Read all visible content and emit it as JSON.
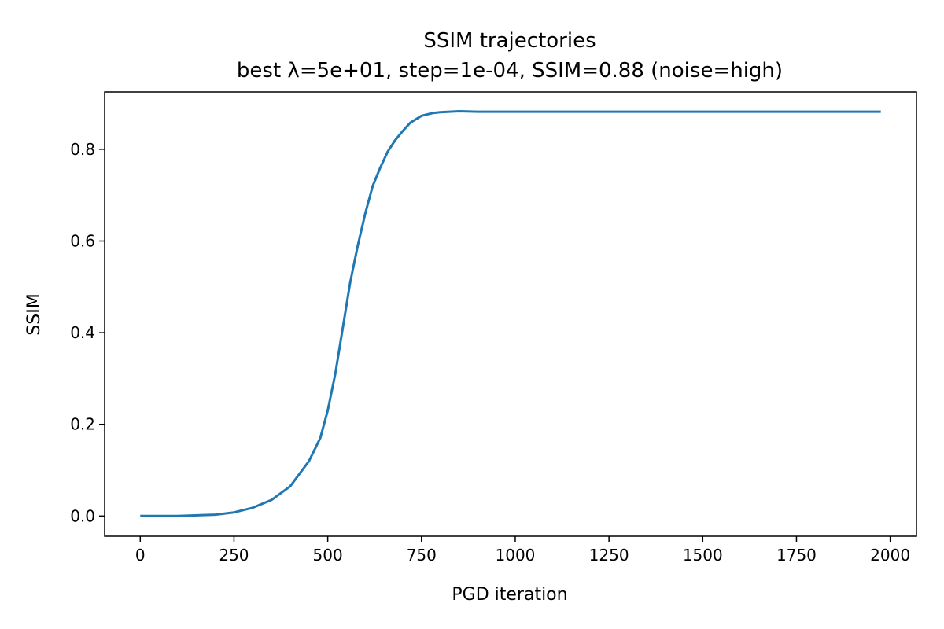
{
  "chart_data": {
    "type": "line",
    "title": "SSIM trajectories",
    "subtitle": "best λ=5e+01, step=1e-04, SSIM=0.88 (noise=high)",
    "xlabel": "PGD iteration",
    "ylabel": "SSIM",
    "xlim": [
      -95,
      2070
    ],
    "ylim": [
      -0.044,
      0.925
    ],
    "x_ticks": [
      0,
      250,
      500,
      750,
      1000,
      1250,
      1500,
      1750,
      2000
    ],
    "x_tick_labels": [
      "0",
      "250",
      "500",
      "750",
      "1000",
      "1250",
      "1500",
      "1750",
      "2000"
    ],
    "y_ticks": [
      0.0,
      0.2,
      0.4,
      0.6,
      0.8
    ],
    "y_tick_labels": [
      "0.0",
      "0.2",
      "0.4",
      "0.6",
      "0.8"
    ],
    "grid": false,
    "line_color": "#1f77b4",
    "series": [
      {
        "x": [
          0,
          100,
          200,
          250,
          300,
          350,
          400,
          450,
          480,
          500,
          520,
          540,
          560,
          580,
          600,
          620,
          640,
          660,
          680,
          700,
          720,
          750,
          780,
          800,
          850,
          900,
          1000,
          1250,
          1500,
          1750,
          1975
        ],
        "y": [
          0.0,
          0.0,
          0.003,
          0.008,
          0.018,
          0.035,
          0.065,
          0.12,
          0.17,
          0.23,
          0.31,
          0.41,
          0.51,
          0.59,
          0.66,
          0.72,
          0.76,
          0.795,
          0.82,
          0.84,
          0.858,
          0.873,
          0.879,
          0.881,
          0.883,
          0.882,
          0.882,
          0.882,
          0.882,
          0.882,
          0.882
        ]
      }
    ]
  }
}
